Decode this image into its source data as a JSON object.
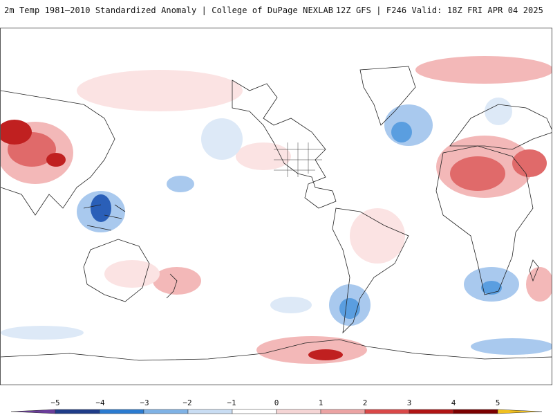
{
  "header": {
    "title_left": "2m Temp 1981–2010 Standardized Anomaly | College of DuPage NEXLAB",
    "title_right": "12Z GFS | F246 Valid: 18Z FRI APR 04 2025"
  },
  "colorbar": {
    "ticks": [
      "−5",
      "−4",
      "−3",
      "−2",
      "−1",
      "0",
      "1",
      "2",
      "3",
      "4",
      "5"
    ],
    "colors": [
      "#6a3d9a",
      "#1f3c88",
      "#2b7bd0",
      "#7fb2e5",
      "#c9ddf3",
      "#ffffff",
      "#f5d5d5",
      "#eba3a3",
      "#d94848",
      "#b01515",
      "#7a0000",
      "#f0c020"
    ]
  },
  "map": {
    "ocean_color": "#ffffff",
    "coastline_color": "#222222",
    "warm_colors": [
      "#fbe3e3",
      "#f3b8b8",
      "#e06a6a",
      "#c02020"
    ],
    "cold_colors": [
      "#dde9f7",
      "#a9c9ee",
      "#5a9ee0",
      "#2a5fb8"
    ]
  }
}
